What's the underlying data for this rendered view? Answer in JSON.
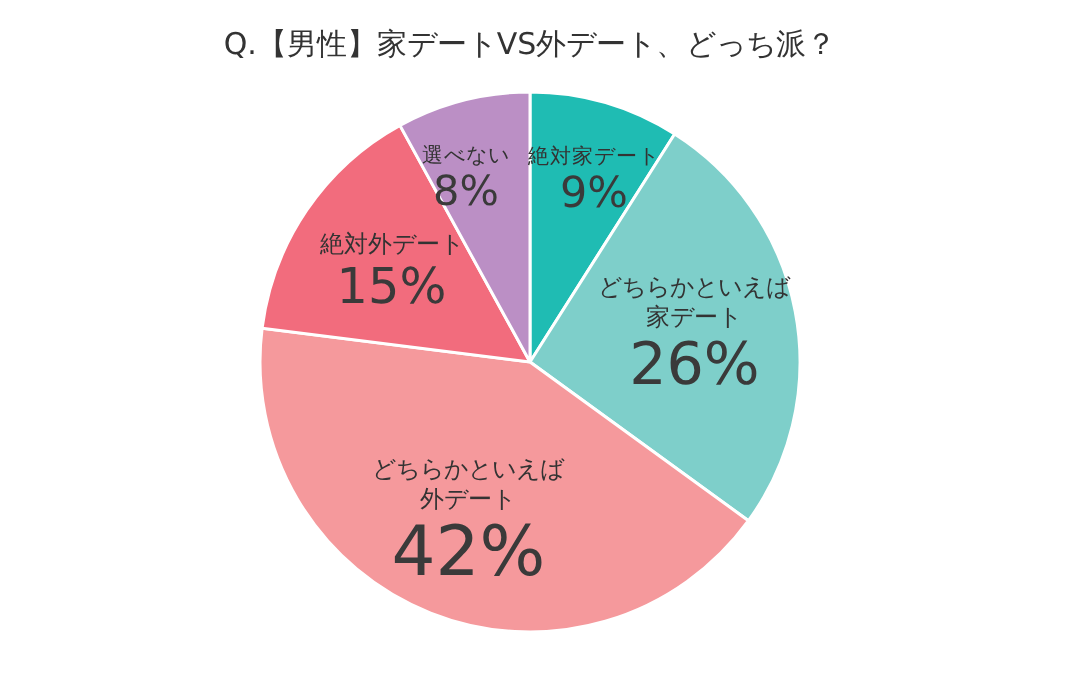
{
  "chart_data": {
    "type": "pie",
    "title": "Q.【男性】家デートVS外デート、どっち派？",
    "categories": [
      "絶対家デート",
      "どちらかといえば家デート",
      "どちらかといえば外デート",
      "絶対外デート",
      "選べない"
    ],
    "values": [
      9,
      26,
      42,
      15,
      8
    ],
    "colors": [
      "#1fbcb3",
      "#7ecfca",
      "#f5999c",
      "#f26c7d",
      "#bb8fc5"
    ],
    "value_labels": [
      "9%",
      "26%",
      "42%",
      "15%",
      "8%"
    ]
  }
}
